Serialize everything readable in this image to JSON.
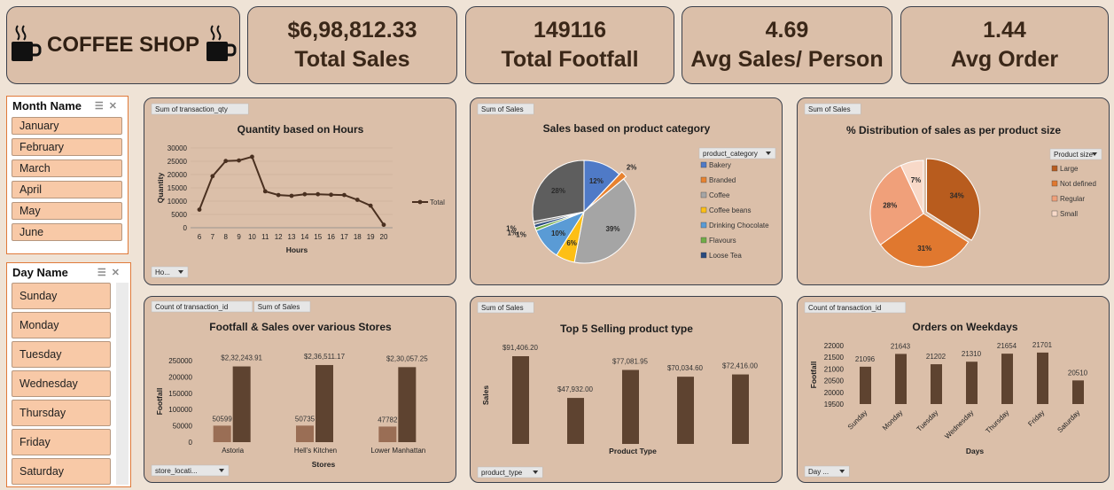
{
  "header": {
    "logo_title": "COFFEE SHOP",
    "kpis": [
      {
        "value": "$6,98,812.33",
        "label": "Total Sales"
      },
      {
        "value": "149116",
        "label": "Total Footfall"
      },
      {
        "value": "4.69",
        "label": "Avg Sales/ Person"
      },
      {
        "value": "1.44",
        "label": "Avg Order"
      }
    ]
  },
  "month_slicer": {
    "title": "Month Name",
    "items": [
      "January",
      "February",
      "March",
      "April",
      "May",
      "June"
    ]
  },
  "day_slicer": {
    "title": "Day Name",
    "items": [
      "Sunday",
      "Monday",
      "Tuesday",
      "Wednesday",
      "Thursday",
      "Friday",
      "Saturday"
    ]
  },
  "colors": {
    "brown_dark": "#5e4330",
    "brown_light": "#9a6e55",
    "panel": "#dbbfa9",
    "chip": "#f8c9a7"
  },
  "chart_data": [
    {
      "type": "line",
      "field_tag": "Sum of transaction_qty",
      "title": "Quantity based on Hours",
      "xlabel": "Hours",
      "ylabel": "Quantity",
      "filter_tag": "Ho...",
      "x": [
        6,
        7,
        8,
        9,
        10,
        11,
        12,
        13,
        14,
        15,
        16,
        17,
        18,
        19,
        20
      ],
      "series": [
        {
          "name": "Total",
          "values": [
            6800,
            19400,
            25100,
            25300,
            26700,
            13700,
            12300,
            12000,
            12600,
            12600,
            12400,
            12300,
            10500,
            8300,
            1100
          ]
        }
      ],
      "yticks": [
        "30000",
        "25000",
        "20000",
        "15000",
        "10000",
        "5000",
        "0"
      ],
      "ylim": [
        0,
        30000
      ],
      "legend": "right"
    },
    {
      "type": "pie",
      "field_tag": "Sum of Sales",
      "title": "Sales based on product category",
      "legend_title": "product_category",
      "slices": [
        {
          "label": "Bakery",
          "value": 12,
          "text": "12%",
          "color": "#4f7ac7"
        },
        {
          "label": "Branded",
          "value": 2,
          "text": "2%",
          "color": "#e8822f"
        },
        {
          "label": "Coffee",
          "value": 39,
          "text": "39%",
          "color": "#a5a5a5"
        },
        {
          "label": "Coffee beans",
          "value": 6,
          "text": "6%",
          "color": "#fdbf15"
        },
        {
          "label": "Drinking Chocolate",
          "value": 10,
          "text": "10%",
          "color": "#5a9bd5"
        },
        {
          "label": "Flavours",
          "value": 1,
          "text": "1%",
          "color": "#70ad47"
        },
        {
          "label": "Loose Tea",
          "value": 1,
          "text": "1%",
          "color": "#284a7e"
        },
        {
          "label": "",
          "value": 1,
          "text": "1%",
          "color": "#8a8a8a"
        },
        {
          "label": "",
          "value": 28,
          "text": "28%",
          "color": "#5e5e5e"
        }
      ]
    },
    {
      "type": "pie",
      "field_tag": "Sum of Sales",
      "title": "% Distribution of sales as per product size",
      "legend_title": "Product size",
      "slices": [
        {
          "label": "Large",
          "value": 34,
          "text": "34%",
          "color": "#b85c1e"
        },
        {
          "label": "Not defined",
          "value": 31,
          "text": "31%",
          "color": "#e0782f"
        },
        {
          "label": "Regular",
          "value": 28,
          "text": "28%",
          "color": "#f0a07a"
        },
        {
          "label": "Small",
          "value": 7,
          "text": "7%",
          "color": "#f8d9c8"
        }
      ]
    },
    {
      "type": "bar",
      "field_tags": [
        "Count of transaction_id",
        "Sum of Sales"
      ],
      "title": "Footfall & Sales over various Stores",
      "xlabel": "Stores",
      "ylabel": "Footfall",
      "filter_tag": "store_locati...",
      "categories": [
        "Astoria",
        "Hell's Kitchen",
        "Lower Manhattan"
      ],
      "series": [
        {
          "values": [
            50599,
            50735,
            47782
          ],
          "labels": [
            "50599",
            "50735",
            "47782"
          ]
        },
        {
          "values": [
            232243.91,
            236511.17,
            230057.25
          ],
          "labels": [
            "$2,32,243.91",
            "$2,36,511.17",
            "$2,30,057.25"
          ]
        }
      ],
      "yticks": [
        "250000",
        "200000",
        "150000",
        "100000",
        "50000",
        "0"
      ],
      "ylim": [
        0,
        250000
      ]
    },
    {
      "type": "bar",
      "field_tag": "Sum of Sales",
      "title": "Top 5 Selling product type",
      "xlabel": "Product Type",
      "ylabel": "Sales",
      "filter_tag": "product_type",
      "values": [
        91406.2,
        47932.0,
        77081.95,
        70034.6,
        72416.0
      ],
      "labels": [
        "$91,406.20",
        "$47,932.00",
        "$77,081.95",
        "$70,034.60",
        "$72,416.00"
      ]
    },
    {
      "type": "bar",
      "field_tag": "Count of transaction_id",
      "title": "Orders on Weekdays",
      "xlabel": "Days",
      "ylabel": "Footfall",
      "filter_tag": "Day ...",
      "categories": [
        "Sunday",
        "Monday",
        "Tuesday",
        "Wednesday",
        "Thursday",
        "Friday",
        "Saturday"
      ],
      "values": [
        21096,
        21643,
        21202,
        21310,
        21654,
        21701,
        20510
      ],
      "yticks": [
        "22000",
        "21500",
        "21000",
        "20500",
        "20000",
        "19500"
      ],
      "ylim": [
        19500,
        22000
      ]
    }
  ]
}
